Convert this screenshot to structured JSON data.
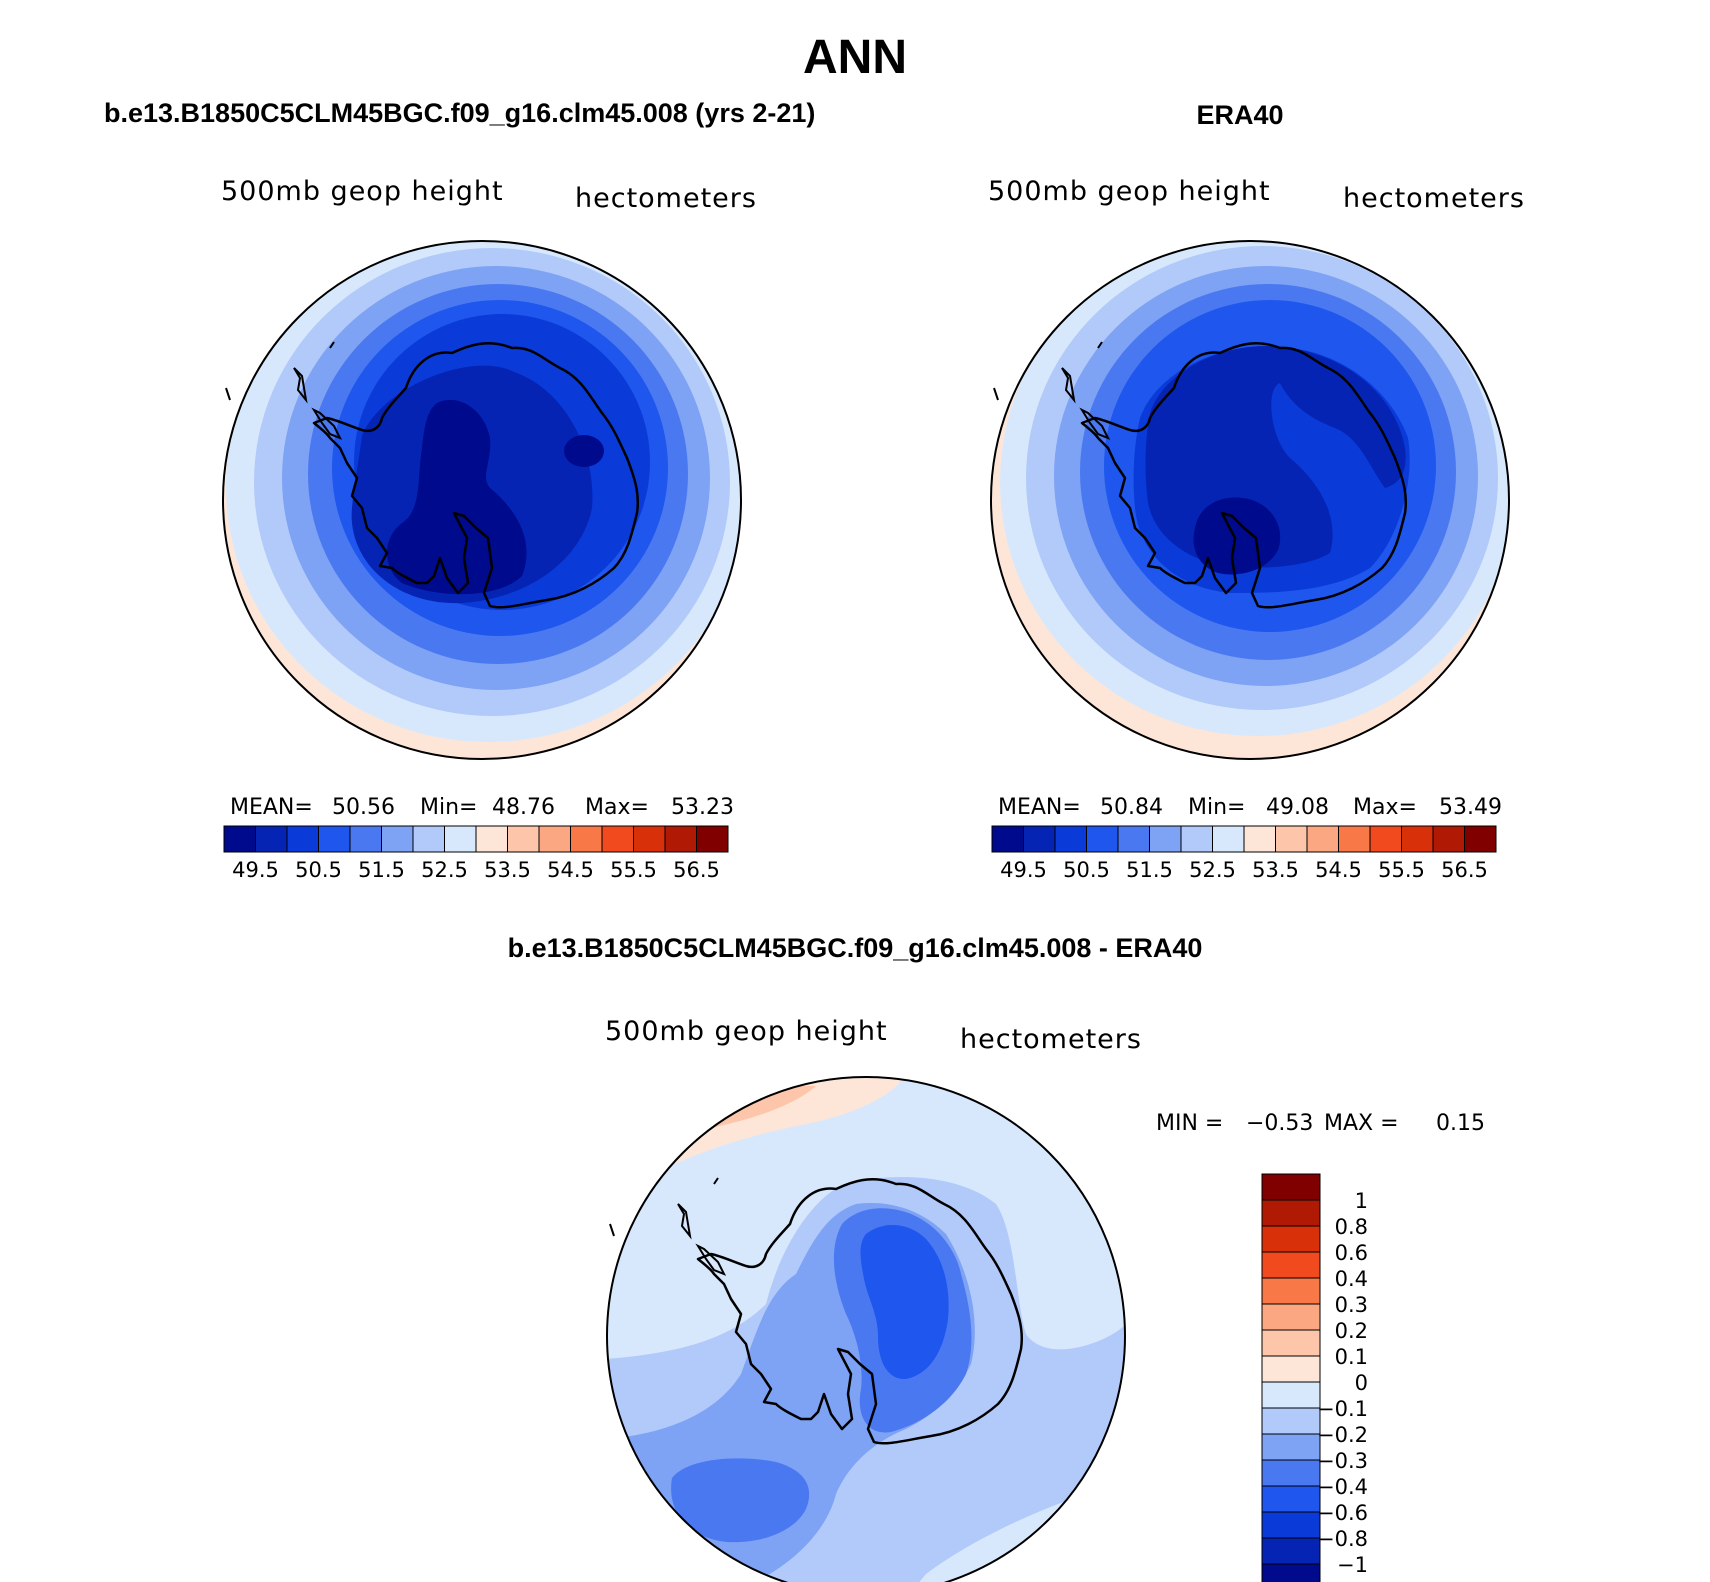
{
  "title": "ANN",
  "panels": [
    {
      "title": "b.e13.B1850C5CLM45BGC.f09_g16.clm45.008 (yrs 2-21)",
      "left_label": "500mb geop height",
      "right_label": "hectometers",
      "stats": {
        "mean_label": "MEAN=",
        "mean": "50.56",
        "min_label": "Min=",
        "min": "48.76",
        "max_label": "Max=",
        "max": "53.23"
      }
    },
    {
      "title": "ERA40",
      "left_label": "500mb geop height",
      "right_label": "hectometers",
      "stats": {
        "mean_label": "MEAN=",
        "mean": "50.84",
        "min_label": "Min=",
        "min": "49.08",
        "max_label": "Max=",
        "max": "53.49"
      }
    },
    {
      "title": "b.e13.B1850C5CLM45BGC.f09_g16.clm45.008 - ERA40",
      "left_label": "500mb geop height",
      "right_label": "hectometers",
      "stats": {
        "min_label": "MIN =",
        "min": "−0.53",
        "max_label": "MAX =",
        "max": "0.15"
      }
    }
  ],
  "colorbar_abs": {
    "colors": [
      "#000a8c",
      "#0524b4",
      "#0a3ad8",
      "#1e56ee",
      "#4a78f0",
      "#7ea2f4",
      "#b2cafa",
      "#d8e8fc",
      "#fde6d8",
      "#fdc6aa",
      "#fba882",
      "#f87848",
      "#f04a1e",
      "#d83008",
      "#b01a04",
      "#800000"
    ],
    "tick_labels": [
      "49.5",
      "50.5",
      "51.5",
      "52.5",
      "53.5",
      "54.5",
      "55.5",
      "56.5"
    ]
  },
  "colorbar_diff": {
    "colors": [
      "#800000",
      "#b01a04",
      "#d83008",
      "#f04a1e",
      "#f87848",
      "#fba882",
      "#fdc6aa",
      "#fde6d8",
      "#d8e8fc",
      "#b2cafa",
      "#7ea2f4",
      "#4a78f0",
      "#1e56ee",
      "#0a3ad8",
      "#0524b4",
      "#000a8c"
    ],
    "tick_labels": [
      "1",
      "0.8",
      "0.6",
      "0.4",
      "0.3",
      "0.2",
      "0.1",
      "0",
      "−0.1",
      "−0.2",
      "−0.3",
      "−0.4",
      "−0.6",
      "−0.8",
      "−1"
    ]
  }
}
